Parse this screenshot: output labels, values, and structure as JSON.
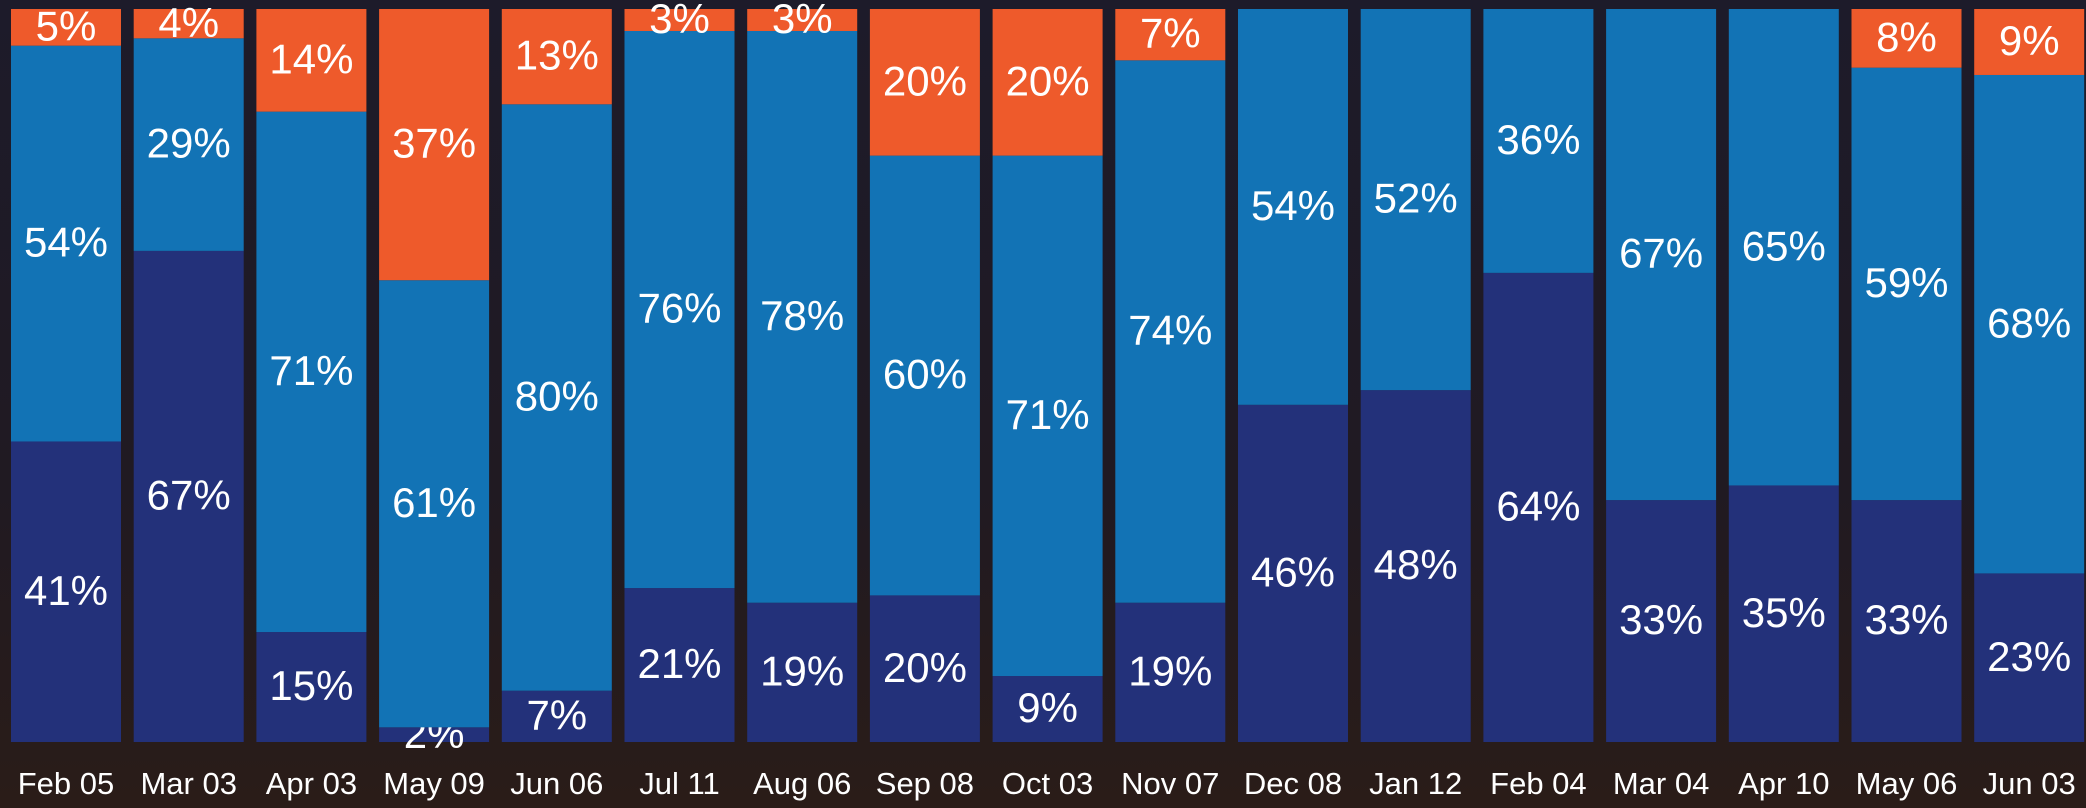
{
  "chart_data": {
    "type": "stacked_bar",
    "categories": [
      "Feb 05",
      "Mar 03",
      "Apr 03",
      "May 09",
      "Jun 06",
      "Jul 11",
      "Aug 06",
      "Sep 08",
      "Oct 03",
      "Nov 07",
      "Dec 08",
      "Jan 12",
      "Feb 04",
      "Mar 04",
      "Apr 10",
      "May 06",
      "Jun 03"
    ],
    "ylim": [
      0,
      100
    ],
    "series": [
      {
        "color": "#23317a",
        "values": [
          41,
          67,
          15,
          2,
          7,
          21,
          19,
          20,
          9,
          19,
          46,
          48,
          64,
          33,
          35,
          33,
          23
        ],
        "value_labels": [
          "41%",
          "67%",
          "15%",
          "2%",
          "7%",
          "21%",
          "19%",
          "20%",
          "9%",
          "19%",
          "46%",
          "48%",
          "64%",
          "33%",
          "35%",
          "33%",
          "23%"
        ]
      },
      {
        "color": "#1273b5",
        "values": [
          54,
          29,
          71,
          61,
          80,
          76,
          78,
          60,
          71,
          74,
          54,
          52,
          36,
          67,
          65,
          59,
          68
        ],
        "value_labels": [
          "54%",
          "29%",
          "71%",
          "61%",
          "80%",
          "76%",
          "78%",
          "60%",
          "71%",
          "74%",
          "54%",
          "52%",
          "36%",
          "67%",
          "65%",
          "59%",
          "68%"
        ]
      },
      {
        "color": "#ee5a2b",
        "values": [
          5,
          4,
          14,
          37,
          13,
          3,
          3,
          20,
          20,
          7,
          null,
          null,
          null,
          null,
          null,
          8,
          9
        ],
        "value_labels": [
          "5%",
          "4%",
          "14%",
          "37%",
          "13%",
          "3%",
          "3%",
          "20%",
          "20%",
          "7%",
          null,
          null,
          null,
          null,
          null,
          "8%",
          "9%"
        ]
      }
    ]
  }
}
